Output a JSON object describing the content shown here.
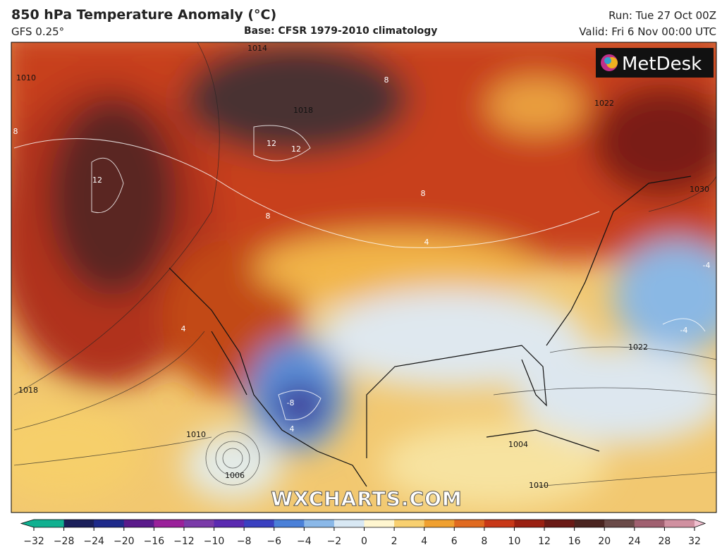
{
  "header": {
    "title": "850 hPa Temperature Anomaly (°C)",
    "model": "GFS 0.25°",
    "base": "Base: CFSR 1979-2010 climatology",
    "run": "Run: Tue 27 Oct 00Z",
    "valid": "Valid: Fri 6 Nov 00:00 UTC"
  },
  "logo": "MetDesk",
  "watermark": "WXCHARTS.COM",
  "contour_labels": [
    "1014",
    "1018",
    "12",
    "12",
    "12",
    "8",
    "8",
    "8",
    "1022",
    "1030",
    "4",
    "4",
    "1022",
    "-4",
    "-4",
    "-8",
    "4",
    "1010",
    "1006",
    "1004",
    "1010",
    "1010",
    "8",
    "1018"
  ],
  "colorbar": {
    "ticks": [
      {
        "value": -32,
        "label": "−32"
      },
      {
        "value": -28,
        "label": "−28"
      },
      {
        "value": -24,
        "label": "−24"
      },
      {
        "value": -20,
        "label": "−20"
      },
      {
        "value": -16,
        "label": "−16"
      },
      {
        "value": -12,
        "label": "−12"
      },
      {
        "value": -10,
        "label": "−10"
      },
      {
        "value": -8,
        "label": "−8"
      },
      {
        "value": -6,
        "label": "−6"
      },
      {
        "value": -4,
        "label": "−4"
      },
      {
        "value": -2,
        "label": "−2"
      },
      0,
      2,
      4,
      6,
      8,
      10,
      12,
      16,
      20,
      24,
      28,
      32
    ]
  }
}
